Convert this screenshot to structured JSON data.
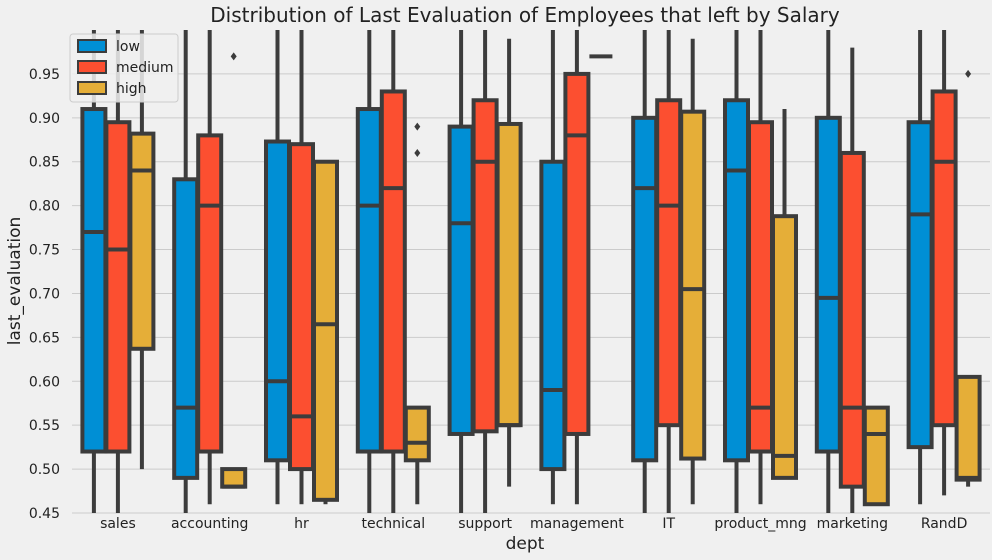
{
  "chart_data": {
    "type": "box",
    "title": "Distribution of Last Evaluation of Employees that left by Salary",
    "xlabel": "dept",
    "ylabel": "last_evaluation",
    "ylim": [
      0.45,
      1.0
    ],
    "yticks": [
      "0.45",
      "0.50",
      "0.55",
      "0.60",
      "0.65",
      "0.70",
      "0.75",
      "0.80",
      "0.85",
      "0.90",
      "0.95"
    ],
    "grid": true,
    "legend_position": "top-left",
    "categories": [
      "sales",
      "accounting",
      "hr",
      "technical",
      "support",
      "management",
      "IT",
      "product_mng",
      "marketing",
      "RandD"
    ],
    "series": [
      {
        "name": "low",
        "color": "#008fd5",
        "boxes": [
          {
            "q1": 0.52,
            "median": 0.77,
            "q3": 0.91,
            "whisker_low": 0.45,
            "whisker_high": 1.0,
            "outliers": []
          },
          {
            "q1": 0.49,
            "median": 0.57,
            "q3": 0.83,
            "whisker_low": 0.45,
            "whisker_high": 1.0,
            "outliers": []
          },
          {
            "q1": 0.51,
            "median": 0.6,
            "q3": 0.873,
            "whisker_low": 0.46,
            "whisker_high": 1.0,
            "outliers": []
          },
          {
            "q1": 0.52,
            "median": 0.8,
            "q3": 0.91,
            "whisker_low": 0.45,
            "whisker_high": 1.0,
            "outliers": []
          },
          {
            "q1": 0.54,
            "median": 0.78,
            "q3": 0.89,
            "whisker_low": 0.45,
            "whisker_high": 1.0,
            "outliers": []
          },
          {
            "q1": 0.5,
            "median": 0.59,
            "q3": 0.85,
            "whisker_low": 0.46,
            "whisker_high": 1.0,
            "outliers": []
          },
          {
            "q1": 0.51,
            "median": 0.82,
            "q3": 0.9,
            "whisker_low": 0.45,
            "whisker_high": 1.0,
            "outliers": []
          },
          {
            "q1": 0.51,
            "median": 0.84,
            "q3": 0.92,
            "whisker_low": 0.45,
            "whisker_high": 1.0,
            "outliers": []
          },
          {
            "q1": 0.52,
            "median": 0.695,
            "q3": 0.9,
            "whisker_low": 0.45,
            "whisker_high": 1.0,
            "outliers": []
          },
          {
            "q1": 0.525,
            "median": 0.79,
            "q3": 0.895,
            "whisker_low": 0.46,
            "whisker_high": 1.0,
            "outliers": []
          }
        ]
      },
      {
        "name": "medium",
        "color": "#fc4f30",
        "boxes": [
          {
            "q1": 0.52,
            "median": 0.75,
            "q3": 0.895,
            "whisker_low": 0.45,
            "whisker_high": 1.0,
            "outliers": []
          },
          {
            "q1": 0.52,
            "median": 0.8,
            "q3": 0.88,
            "whisker_low": 0.46,
            "whisker_high": 1.0,
            "outliers": []
          },
          {
            "q1": 0.5,
            "median": 0.56,
            "q3": 0.87,
            "whisker_low": 0.46,
            "whisker_high": 1.0,
            "outliers": []
          },
          {
            "q1": 0.52,
            "median": 0.82,
            "q3": 0.93,
            "whisker_low": 0.45,
            "whisker_high": 1.0,
            "outliers": []
          },
          {
            "q1": 0.543,
            "median": 0.85,
            "q3": 0.92,
            "whisker_low": 0.45,
            "whisker_high": 1.0,
            "outliers": []
          },
          {
            "q1": 0.54,
            "median": 0.88,
            "q3": 0.95,
            "whisker_low": 0.46,
            "whisker_high": 1.0,
            "outliers": []
          },
          {
            "q1": 0.55,
            "median": 0.8,
            "q3": 0.92,
            "whisker_low": 0.45,
            "whisker_high": 1.0,
            "outliers": []
          },
          {
            "q1": 0.52,
            "median": 0.57,
            "q3": 0.895,
            "whisker_low": 0.46,
            "whisker_high": 1.0,
            "outliers": []
          },
          {
            "q1": 0.48,
            "median": 0.57,
            "q3": 0.86,
            "whisker_low": 0.45,
            "whisker_high": 0.98,
            "outliers": []
          },
          {
            "q1": 0.55,
            "median": 0.85,
            "q3": 0.93,
            "whisker_low": 0.47,
            "whisker_high": 1.0,
            "outliers": []
          }
        ]
      },
      {
        "name": "high",
        "color": "#e5ae38",
        "boxes": [
          {
            "q1": 0.637,
            "median": 0.84,
            "q3": 0.882,
            "whisker_low": 0.5,
            "whisker_high": 1.0,
            "outliers": []
          },
          {
            "q1": 0.48,
            "median": 0.48,
            "q3": 0.5,
            "whisker_low": 0.48,
            "whisker_high": 0.5,
            "outliers": [
              0.97
            ]
          },
          {
            "q1": 0.465,
            "median": 0.665,
            "q3": 0.85,
            "whisker_low": 0.46,
            "whisker_high": 0.85,
            "outliers": []
          },
          {
            "q1": 0.51,
            "median": 0.53,
            "q3": 0.57,
            "whisker_low": 0.46,
            "whisker_high": 0.57,
            "outliers": [
              0.86,
              0.89
            ]
          },
          {
            "q1": 0.55,
            "median": 0.55,
            "q3": 0.893,
            "whisker_low": 0.48,
            "whisker_high": 0.99,
            "outliers": []
          },
          {
            "q1": 0.97,
            "median": 0.97,
            "q3": 0.97,
            "whisker_low": 0.97,
            "whisker_high": 0.97,
            "outliers": []
          },
          {
            "q1": 0.512,
            "median": 0.705,
            "q3": 0.907,
            "whisker_low": 0.46,
            "whisker_high": 0.99,
            "outliers": []
          },
          {
            "q1": 0.49,
            "median": 0.515,
            "q3": 0.788,
            "whisker_low": 0.49,
            "whisker_high": 0.91,
            "outliers": []
          },
          {
            "q1": 0.46,
            "median": 0.54,
            "q3": 0.57,
            "whisker_low": 0.46,
            "whisker_high": 0.57,
            "outliers": []
          },
          {
            "q1": 0.488,
            "median": 0.49,
            "q3": 0.605,
            "whisker_low": 0.48,
            "whisker_high": 0.605,
            "outliers": [
              0.95
            ]
          }
        ]
      }
    ]
  }
}
